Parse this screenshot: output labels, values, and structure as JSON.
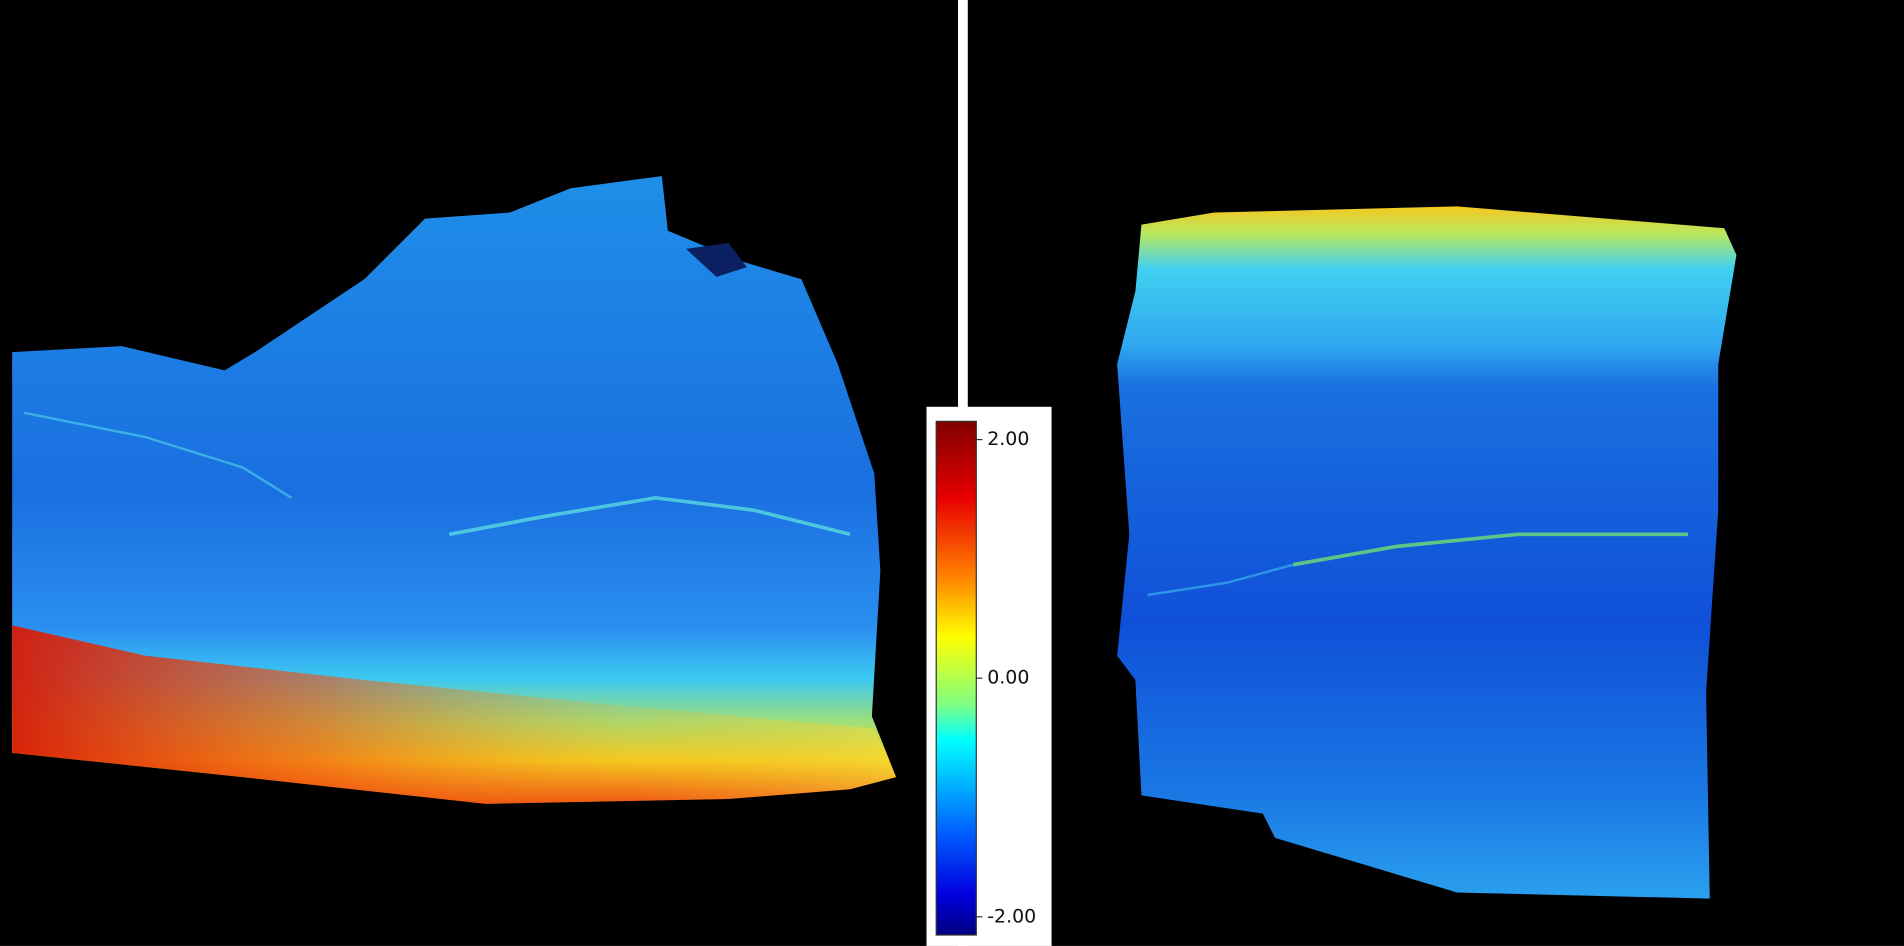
{
  "colorbar": {
    "lim": [
      -2,
      2
    ],
    "ticks": [
      {
        "value": 2,
        "label": "2.00"
      },
      {
        "value": 0,
        "label": "0.00"
      },
      {
        "value": -2,
        "label": "-2.00"
      }
    ]
  }
}
